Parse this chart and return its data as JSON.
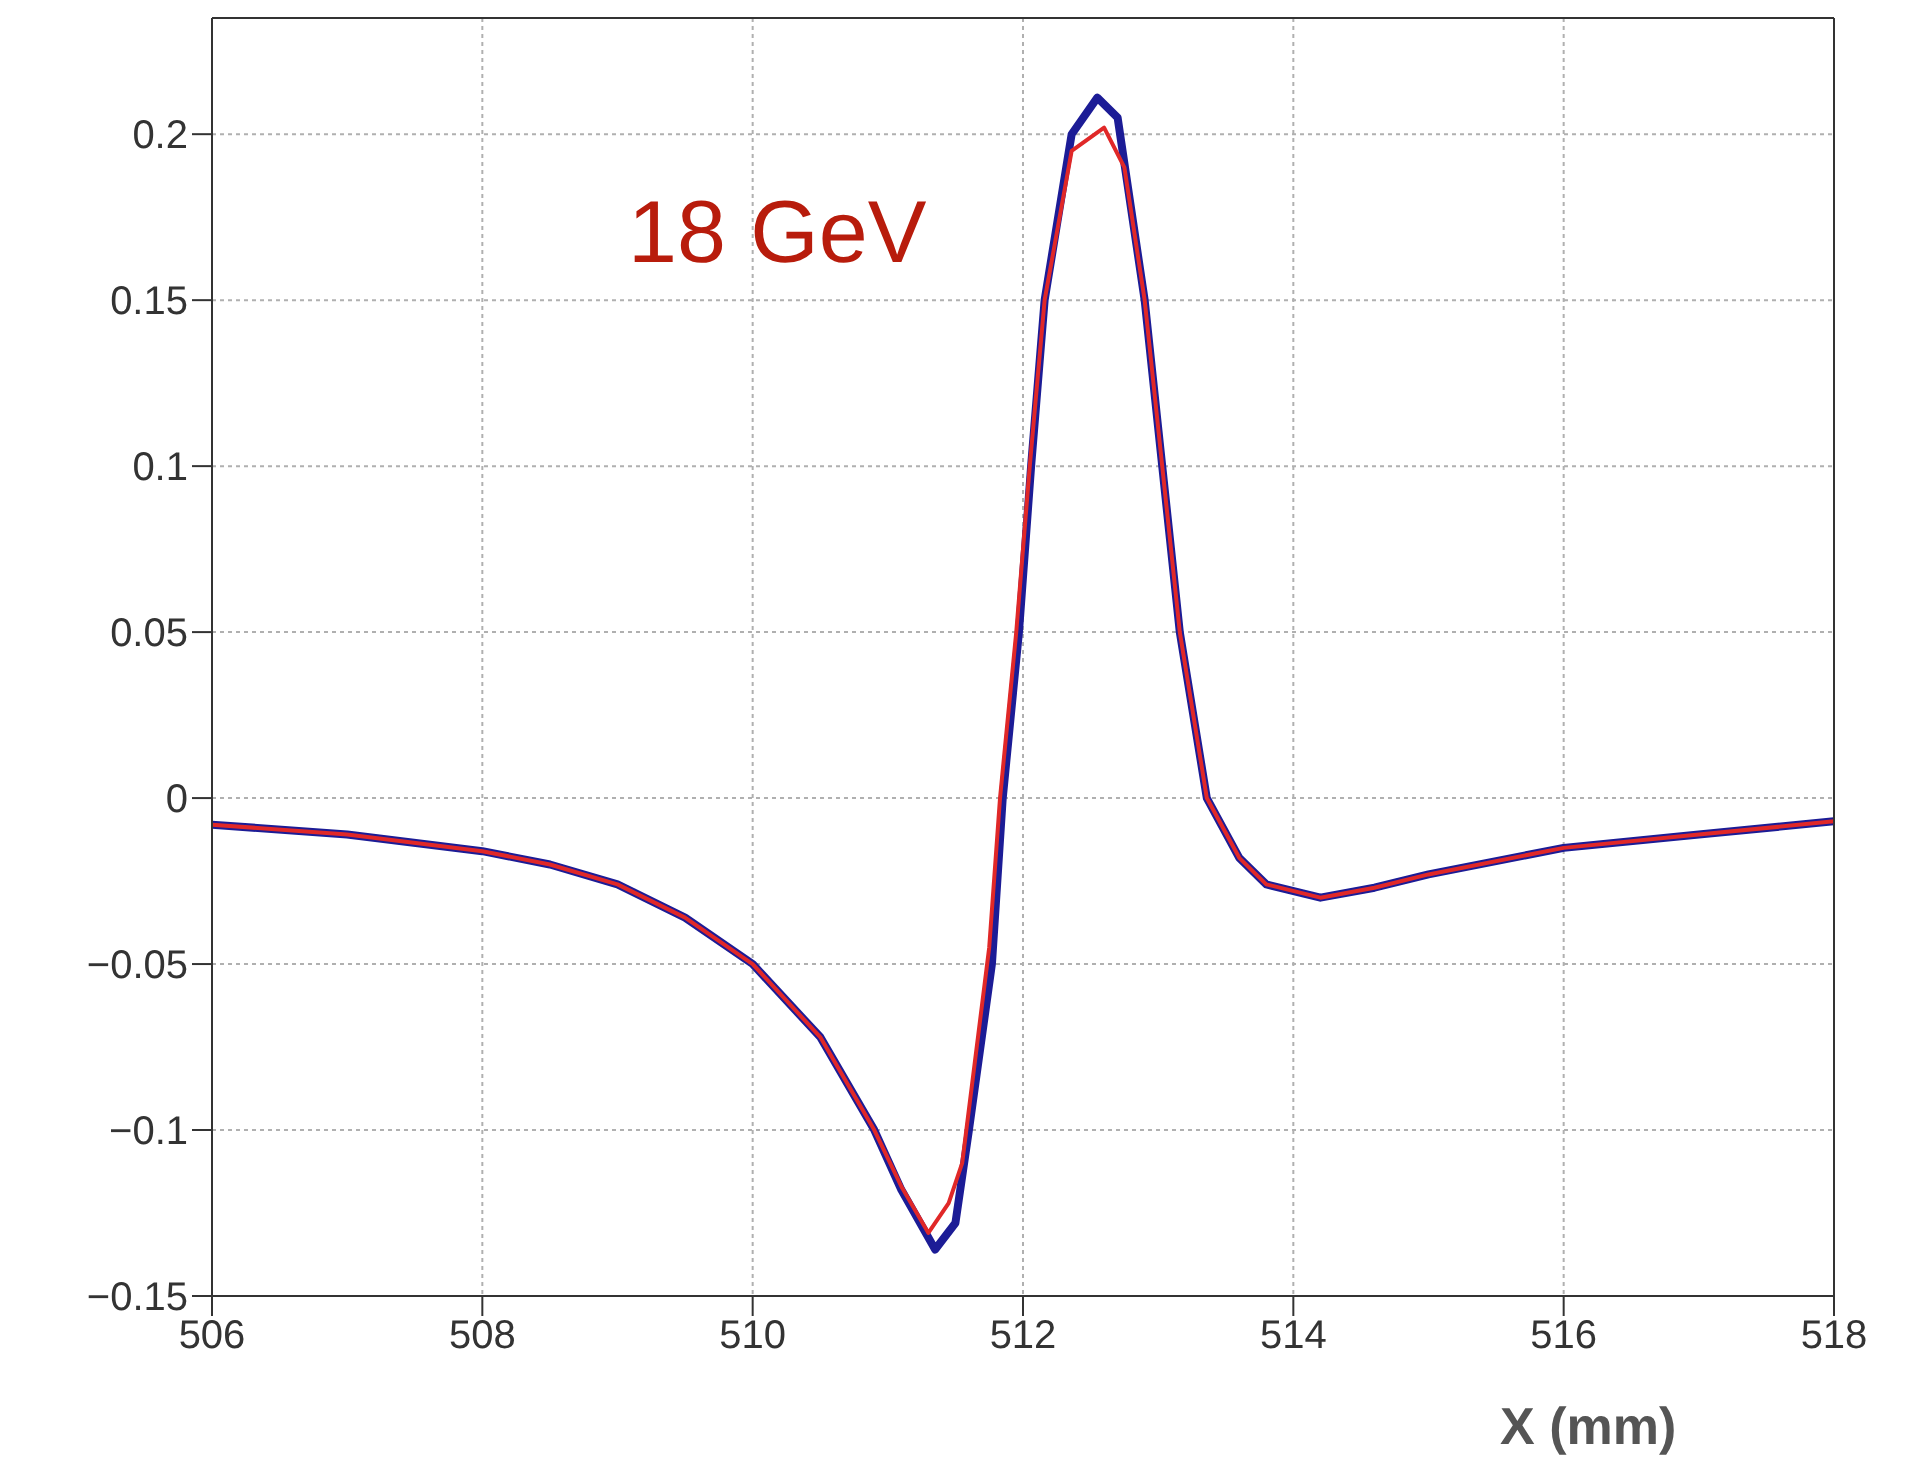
{
  "chart_data": {
    "type": "line",
    "xlabel": "X (mm)",
    "annotations": [
      "18 GeV"
    ],
    "xlim": [
      506,
      518
    ],
    "xticks": [
      506,
      508,
      510,
      512,
      514,
      516,
      518
    ],
    "ylim": [
      -0.15,
      0.235
    ],
    "yticks": [
      {
        "value": -0.15,
        "label": "−0.15"
      },
      {
        "value": -0.1,
        "label": "−0.1"
      },
      {
        "value": -0.05,
        "label": "−0.05"
      },
      0,
      0.05,
      0.1,
      0.15,
      0.2
    ],
    "grid": true,
    "marker": "none",
    "line_style": "solid",
    "series": [
      {
        "color": "#1c1c96",
        "x": [
          506,
          507,
          508,
          508.5,
          509,
          509.5,
          510,
          510.5,
          510.9,
          511.1,
          511.35,
          511.5,
          511.6,
          511.77,
          511.85,
          511.97,
          512.06,
          512.16,
          512.36,
          512.55,
          512.7,
          512.9,
          513.03,
          513.16,
          513.36,
          513.6,
          513.8,
          514.2,
          514.6,
          515,
          516,
          517,
          518
        ],
        "values": [
          -0.008,
          -0.011,
          -0.016,
          -0.02,
          -0.026,
          -0.036,
          -0.05,
          -0.072,
          -0.1,
          -0.118,
          -0.136,
          -0.128,
          -0.1,
          -0.05,
          0,
          0.05,
          0.1,
          0.15,
          0.2,
          0.211,
          0.205,
          0.15,
          0.1,
          0.05,
          0,
          -0.018,
          -0.026,
          -0.03,
          -0.027,
          -0.023,
          -0.015,
          -0.011,
          -0.007
        ]
      },
      {
        "color": "#e02828",
        "x": [
          506,
          507,
          508,
          508.5,
          509,
          509.5,
          510,
          510.5,
          510.9,
          511.1,
          511.3,
          511.45,
          511.55,
          511.75,
          511.83,
          511.95,
          512.05,
          512.16,
          512.36,
          512.6,
          512.75,
          512.9,
          513.03,
          513.16,
          513.36,
          513.6,
          513.8,
          514.2,
          514.6,
          515,
          516,
          517,
          518
        ],
        "values": [
          -0.008,
          -0.011,
          -0.016,
          -0.02,
          -0.026,
          -0.036,
          -0.05,
          -0.072,
          -0.1,
          -0.117,
          -0.131,
          -0.122,
          -0.11,
          -0.045,
          0,
          0.05,
          0.1,
          0.15,
          0.195,
          0.202,
          0.19,
          0.15,
          0.1,
          0.05,
          0,
          -0.018,
          -0.026,
          -0.03,
          -0.027,
          -0.023,
          -0.015,
          -0.011,
          -0.007
        ]
      }
    ]
  }
}
